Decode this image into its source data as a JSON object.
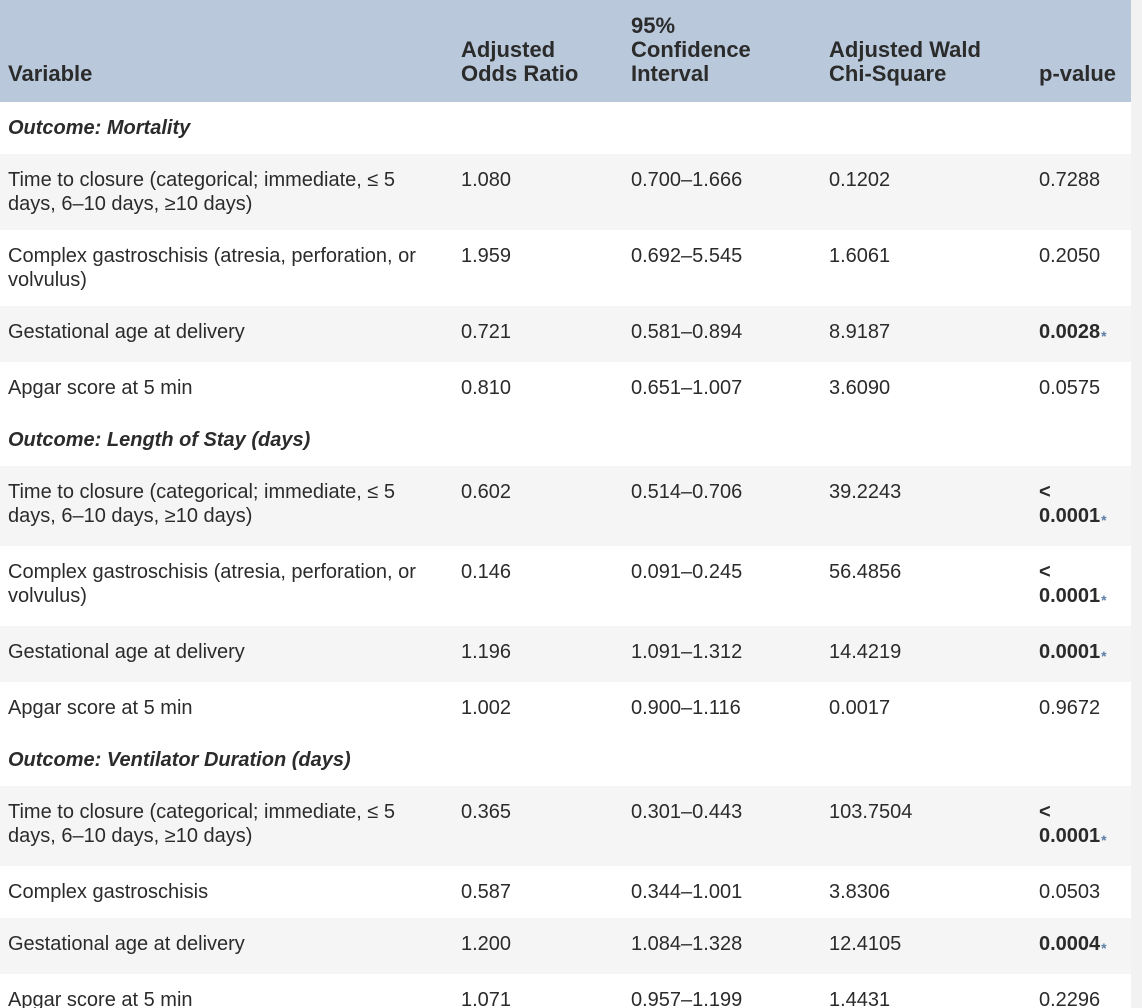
{
  "columns": {
    "variable": "Variable",
    "odds_ratio": "Adjusted Odds Ratio",
    "ci_line1": "95%",
    "ci_line2": "Confidence Interval",
    "wald": "Adjusted Wald Chi-Square",
    "pvalue": "p-value"
  },
  "sections": [
    {
      "title": "Outcome: Mortality",
      "rows": [
        {
          "variable": "Time to closure (categorical; immediate, ≤ 5 days, 6–10 days, ≥10 days)",
          "odds_ratio": "1.080",
          "ci": "0.700–1.666",
          "wald": "0.1202",
          "pvalue": "0.7288",
          "significant": false
        },
        {
          "variable": "Complex gastroschisis (atresia, perforation, or volvulus)",
          "odds_ratio": "1.959",
          "ci": "0.692–5.545",
          "wald": "1.6061",
          "pvalue": "0.2050",
          "significant": false
        },
        {
          "variable": "Gestational age at delivery",
          "odds_ratio": "0.721",
          "ci": "0.581–0.894",
          "wald": "8.9187",
          "pvalue": "0.0028",
          "significant": true
        },
        {
          "variable": "Apgar score at 5 min",
          "odds_ratio": "0.810",
          "ci": "0.651–1.007",
          "wald": "3.6090",
          "pvalue": "0.0575",
          "significant": false
        }
      ]
    },
    {
      "title": "Outcome: Length of Stay (days)",
      "rows": [
        {
          "variable": "Time to closure (categorical; immediate, ≤ 5 days, 6–10 days, ≥10 days)",
          "odds_ratio": "0.602",
          "ci": "0.514–0.706",
          "wald": "39.2243",
          "pvalue": "< 0.0001",
          "significant": true
        },
        {
          "variable": "Complex gastroschisis (atresia, perforation, or volvulus)",
          "odds_ratio": "0.146",
          "ci": "0.091–0.245",
          "wald": "56.4856",
          "pvalue": "< 0.0001",
          "significant": true
        },
        {
          "variable": "Gestational age at delivery",
          "odds_ratio": "1.196",
          "ci": "1.091–1.312",
          "wald": "14.4219",
          "pvalue": "0.0001",
          "significant": true
        },
        {
          "variable": "Apgar score at 5 min",
          "odds_ratio": "1.002",
          "ci": "0.900–1.116",
          "wald": "0.0017",
          "pvalue": "0.9672",
          "significant": false
        }
      ]
    },
    {
      "title": "Outcome: Ventilator Duration (days)",
      "rows": [
        {
          "variable": "Time to closure (categorical; immediate, ≤ 5 days, 6–10 days, ≥10 days)",
          "odds_ratio": "0.365",
          "ci": "0.301–0.443",
          "wald": "103.7504",
          "pvalue": "< 0.0001",
          "significant": true
        },
        {
          "variable": "Complex gastroschisis",
          "odds_ratio": "0.587",
          "ci": "0.344–1.001",
          "wald": "3.8306",
          "pvalue": "0.0503",
          "significant": false
        },
        {
          "variable": "Gestational age at delivery",
          "odds_ratio": "1.200",
          "ci": "1.084–1.328",
          "wald": "12.4105",
          "pvalue": "0.0004",
          "significant": true
        },
        {
          "variable": "Apgar score at 5 min",
          "odds_ratio": "1.071",
          "ci": "0.957–1.199",
          "wald": "1.4431",
          "pvalue": "0.2296",
          "significant": false
        }
      ]
    }
  ],
  "significance_marker": "*",
  "colors": {
    "header_bg": "#b9c9db",
    "row_shade": "#f5f5f5",
    "marker": "#5b7fa6"
  }
}
